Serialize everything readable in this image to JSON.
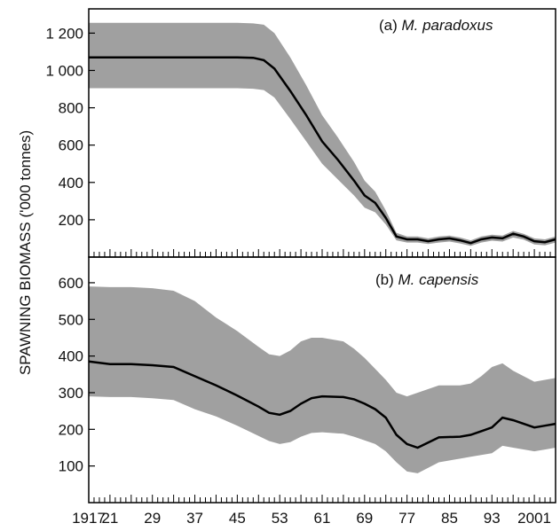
{
  "chart_data": [
    {
      "type": "line",
      "panel_label_prefix": "(a) ",
      "panel_label_species": "M. paradoxus",
      "ylim": [
        0,
        1330
      ],
      "yticks": [
        200,
        400,
        600,
        800,
        1000,
        1200
      ],
      "ytick_labels": [
        "200",
        "400",
        "600",
        "800",
        "1 000",
        "1 200"
      ],
      "band_color": "#a0a0a0",
      "line_color": "#000000",
      "x": [
        1917,
        1925,
        1935,
        1945,
        1948,
        1950,
        1952,
        1955,
        1958,
        1961,
        1964,
        1967,
        1969,
        1971,
        1973,
        1975,
        1977,
        1979,
        1981,
        1983,
        1985,
        1987,
        1989,
        1991,
        1993,
        1995,
        1997,
        1999,
        2001,
        2003,
        2005
      ],
      "median": [
        1070,
        1070,
        1070,
        1070,
        1068,
        1055,
        1010,
        890,
        760,
        620,
        520,
        410,
        330,
        290,
        210,
        110,
        95,
        95,
        85,
        95,
        100,
        90,
        75,
        95,
        105,
        100,
        125,
        110,
        85,
        80,
        95
      ],
      "upper": [
        1255,
        1255,
        1255,
        1255,
        1252,
        1245,
        1200,
        1070,
        920,
        760,
        640,
        510,
        410,
        350,
        250,
        130,
        110,
        110,
        100,
        110,
        115,
        105,
        90,
        110,
        120,
        115,
        140,
        125,
        100,
        95,
        110
      ],
      "lower": [
        905,
        905,
        905,
        905,
        902,
        895,
        855,
        740,
        620,
        500,
        415,
        330,
        265,
        240,
        175,
        90,
        78,
        78,
        70,
        78,
        83,
        73,
        60,
        78,
        88,
        83,
        105,
        93,
        68,
        63,
        78
      ]
    },
    {
      "type": "line",
      "panel_label_prefix": "(b) ",
      "panel_label_species": "M. capensis",
      "ylim": [
        0,
        670
      ],
      "yticks": [
        100,
        200,
        300,
        400,
        500,
        600
      ],
      "ytick_labels": [
        "100",
        "200",
        "300",
        "400",
        "500",
        "600"
      ],
      "band_color": "#a0a0a0",
      "line_color": "#000000",
      "x": [
        1917,
        1921,
        1925,
        1929,
        1933,
        1937,
        1941,
        1945,
        1949,
        1951,
        1953,
        1955,
        1957,
        1959,
        1961,
        1965,
        1967,
        1969,
        1971,
        1973,
        1975,
        1977,
        1979,
        1983,
        1987,
        1989,
        1991,
        1993,
        1995,
        1997,
        2001,
        2003,
        2005
      ],
      "median": [
        385,
        378,
        378,
        375,
        370,
        345,
        320,
        292,
        262,
        245,
        240,
        250,
        270,
        285,
        290,
        288,
        282,
        270,
        255,
        232,
        185,
        160,
        150,
        178,
        180,
        185,
        195,
        205,
        232,
        225,
        205,
        210,
        215
      ],
      "upper": [
        590,
        588,
        588,
        585,
        578,
        550,
        505,
        468,
        425,
        405,
        400,
        415,
        440,
        450,
        450,
        440,
        420,
        395,
        365,
        335,
        300,
        290,
        300,
        320,
        320,
        325,
        345,
        370,
        380,
        360,
        330,
        335,
        340
      ],
      "lower": [
        290,
        288,
        288,
        285,
        280,
        255,
        235,
        210,
        182,
        168,
        160,
        165,
        180,
        190,
        192,
        188,
        180,
        170,
        160,
        140,
        110,
        85,
        80,
        110,
        120,
        125,
        130,
        135,
        155,
        150,
        140,
        145,
        150
      ]
    }
  ],
  "x_axis": {
    "xlim": [
      1917,
      2005
    ],
    "tick_labels": [
      "1917",
      "21",
      "29",
      "37",
      "45",
      "53",
      "61",
      "69",
      "77",
      "85",
      "93",
      "2001"
    ],
    "tick_values": [
      1917,
      1921,
      1929,
      1937,
      1945,
      1953,
      1961,
      1969,
      1977,
      1985,
      1993,
      2001
    ]
  },
  "ylabel": "SPAWNING BIOMASS ('000 tonnes)"
}
